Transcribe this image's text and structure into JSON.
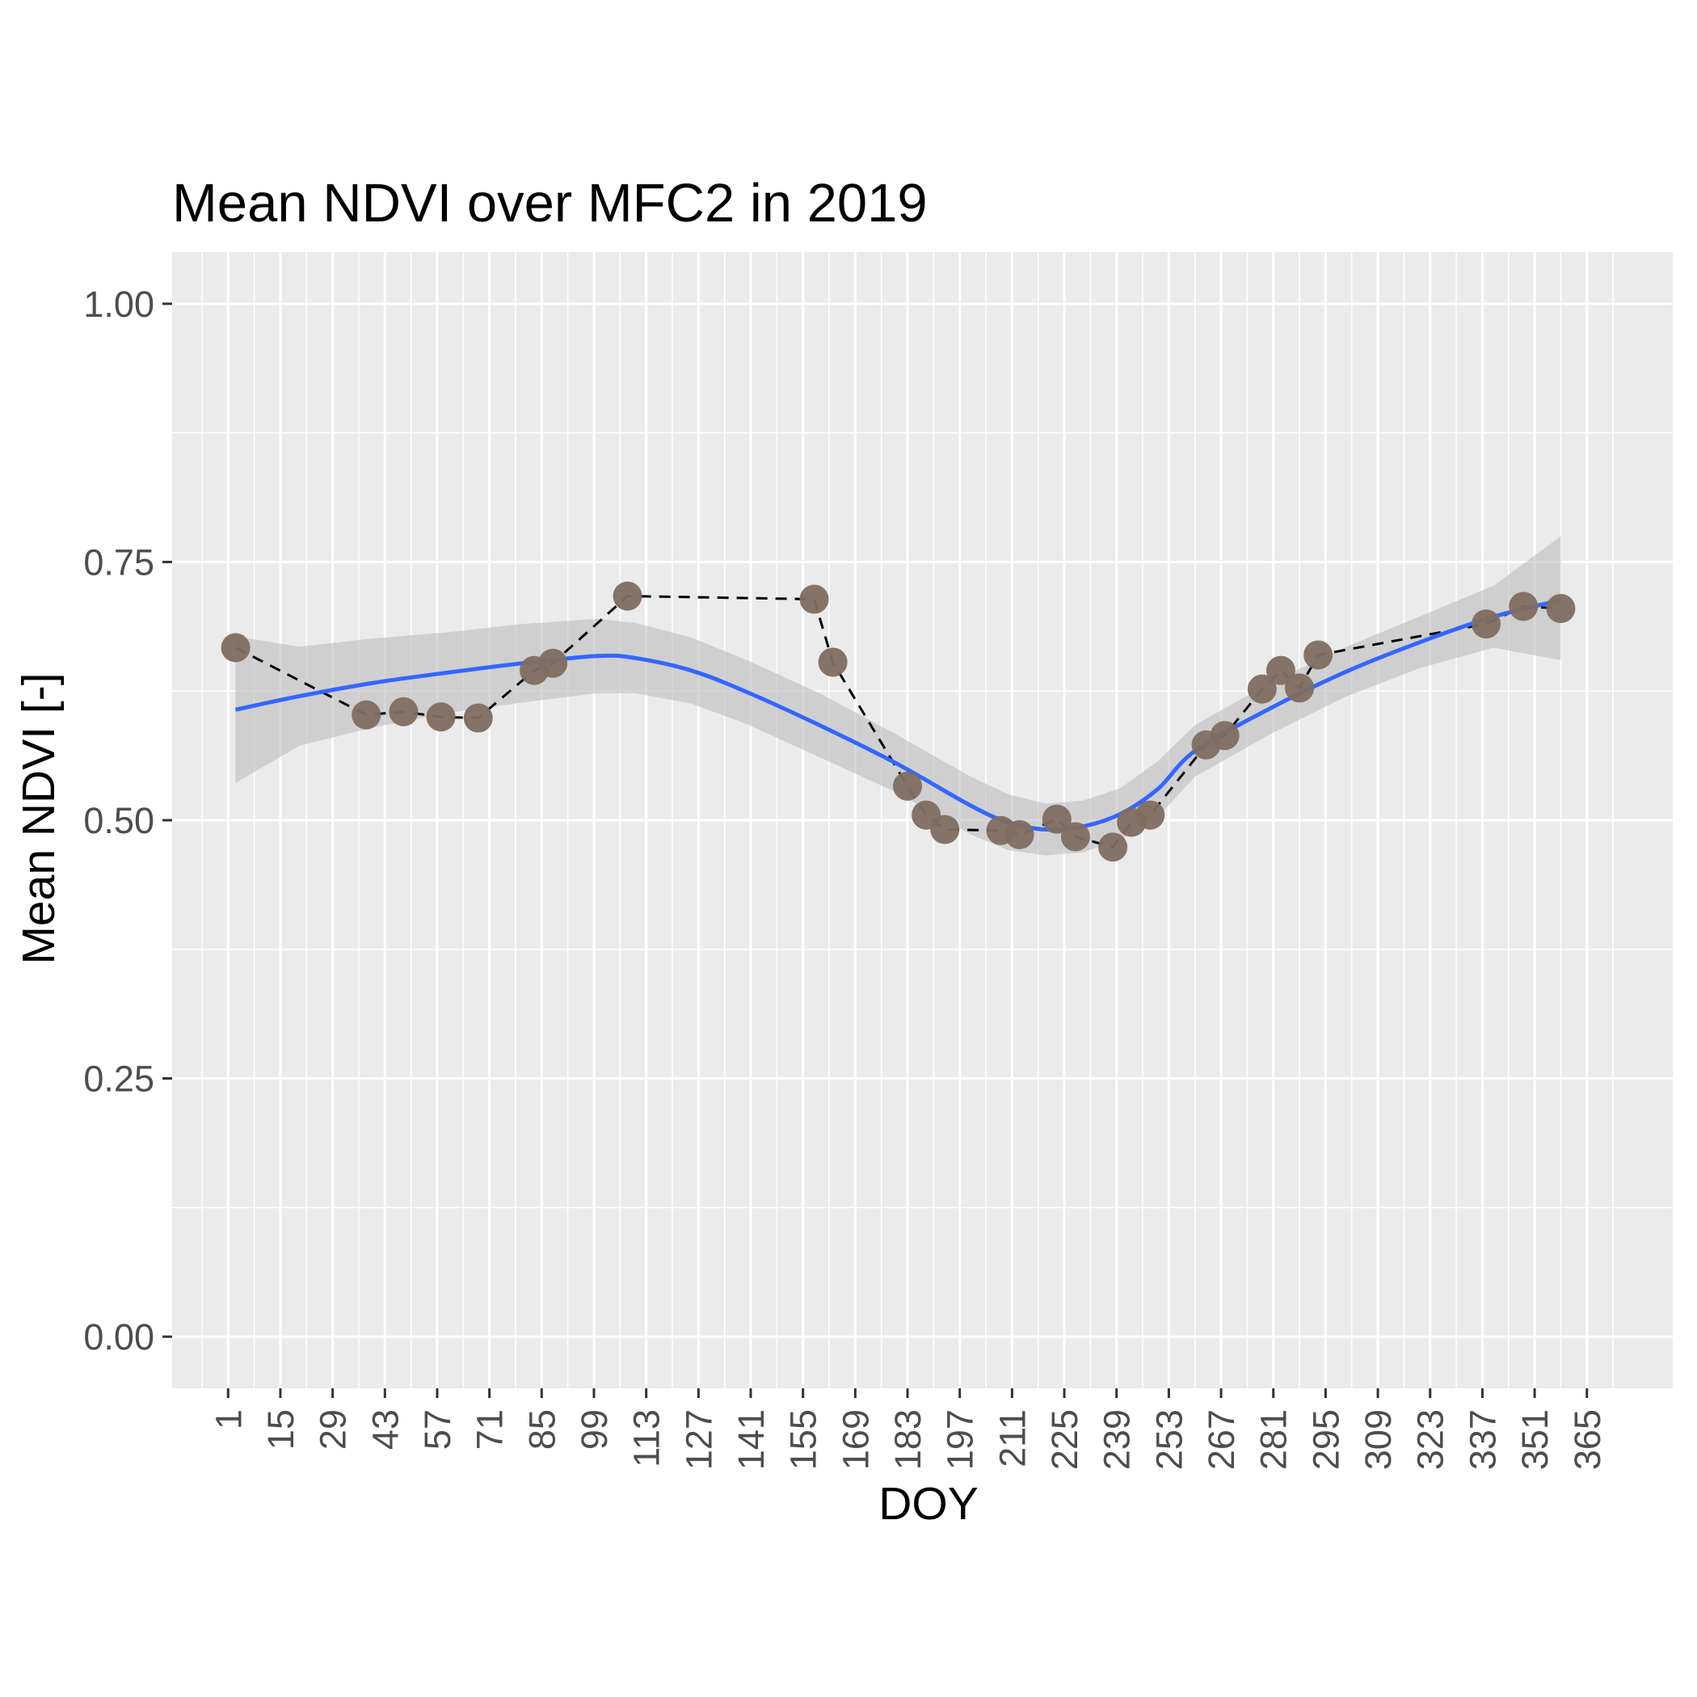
{
  "chart_data": {
    "type": "scatter",
    "title": "Mean NDVI over MFC2 in 2019",
    "xlabel": "DOY",
    "ylabel": "Mean NDVI [-]",
    "xlim": [
      -14,
      388
    ],
    "ylim": [
      -0.05,
      1.05
    ],
    "x_ticks": [
      1,
      15,
      29,
      43,
      57,
      71,
      85,
      99,
      113,
      127,
      141,
      155,
      169,
      183,
      197,
      211,
      225,
      239,
      253,
      267,
      281,
      295,
      309,
      323,
      337,
      351,
      365
    ],
    "y_ticks": [
      "0.00",
      "0.25",
      "0.50",
      "0.75",
      "1.00"
    ],
    "grid": true,
    "colors": {
      "panel": "#ebebeb",
      "grid": "#ffffff",
      "points": "#7f6d60",
      "observed_line": "#000000",
      "smooth": "#3366ff",
      "ribbon": "#bdbdbd"
    },
    "series": [
      {
        "type": "scatter",
        "x": [
          3,
          38,
          48,
          58,
          68,
          83,
          88,
          108,
          158,
          163,
          183,
          188,
          193,
          208,
          213,
          223,
          228,
          238,
          243,
          248,
          263,
          268,
          278,
          283,
          288,
          293,
          338,
          348,
          358
        ],
        "y": [
          0.667,
          0.602,
          0.605,
          0.6,
          0.599,
          0.645,
          0.652,
          0.717,
          0.714,
          0.653,
          0.533,
          0.505,
          0.491,
          0.49,
          0.486,
          0.501,
          0.484,
          0.474,
          0.498,
          0.505,
          0.573,
          0.582,
          0.627,
          0.645,
          0.628,
          0.66,
          0.69,
          0.707,
          0.705
        ]
      },
      {
        "type": "line",
        "dash": "dashed",
        "x": [
          3,
          38,
          48,
          58,
          68,
          83,
          88,
          108,
          158,
          163,
          183,
          188,
          193,
          208,
          213,
          223,
          228,
          238,
          243,
          248,
          263,
          268,
          278,
          283,
          288,
          293,
          338,
          348,
          358
        ],
        "y": [
          0.667,
          0.602,
          0.605,
          0.6,
          0.599,
          0.645,
          0.652,
          0.717,
          0.714,
          0.653,
          0.533,
          0.505,
          0.491,
          0.49,
          0.486,
          0.501,
          0.484,
          0.474,
          0.498,
          0.505,
          0.573,
          0.582,
          0.627,
          0.645,
          0.628,
          0.66,
          0.69,
          0.707,
          0.705
        ]
      },
      {
        "type": "smooth",
        "x": [
          3,
          20,
          40,
          60,
          80,
          100,
          110,
          125,
          140,
          160,
          180,
          200,
          210,
          220,
          230,
          240,
          250,
          260,
          280,
          300,
          320,
          340,
          358
        ],
        "y": [
          0.607,
          0.62,
          0.633,
          0.643,
          0.652,
          0.659,
          0.657,
          0.645,
          0.624,
          0.591,
          0.555,
          0.514,
          0.498,
          0.491,
          0.494,
          0.506,
          0.53,
          0.567,
          0.608,
          0.643,
          0.672,
          0.697,
          0.713
        ],
        "lower": [
          0.536,
          0.572,
          0.59,
          0.604,
          0.614,
          0.623,
          0.623,
          0.613,
          0.593,
          0.56,
          0.527,
          0.486,
          0.471,
          0.466,
          0.469,
          0.481,
          0.503,
          0.542,
          0.583,
          0.619,
          0.647,
          0.667,
          0.655
        ],
        "upper": [
          0.678,
          0.668,
          0.676,
          0.682,
          0.69,
          0.695,
          0.691,
          0.677,
          0.655,
          0.622,
          0.583,
          0.542,
          0.525,
          0.516,
          0.519,
          0.531,
          0.557,
          0.592,
          0.633,
          0.667,
          0.697,
          0.727,
          0.775
        ]
      }
    ]
  }
}
